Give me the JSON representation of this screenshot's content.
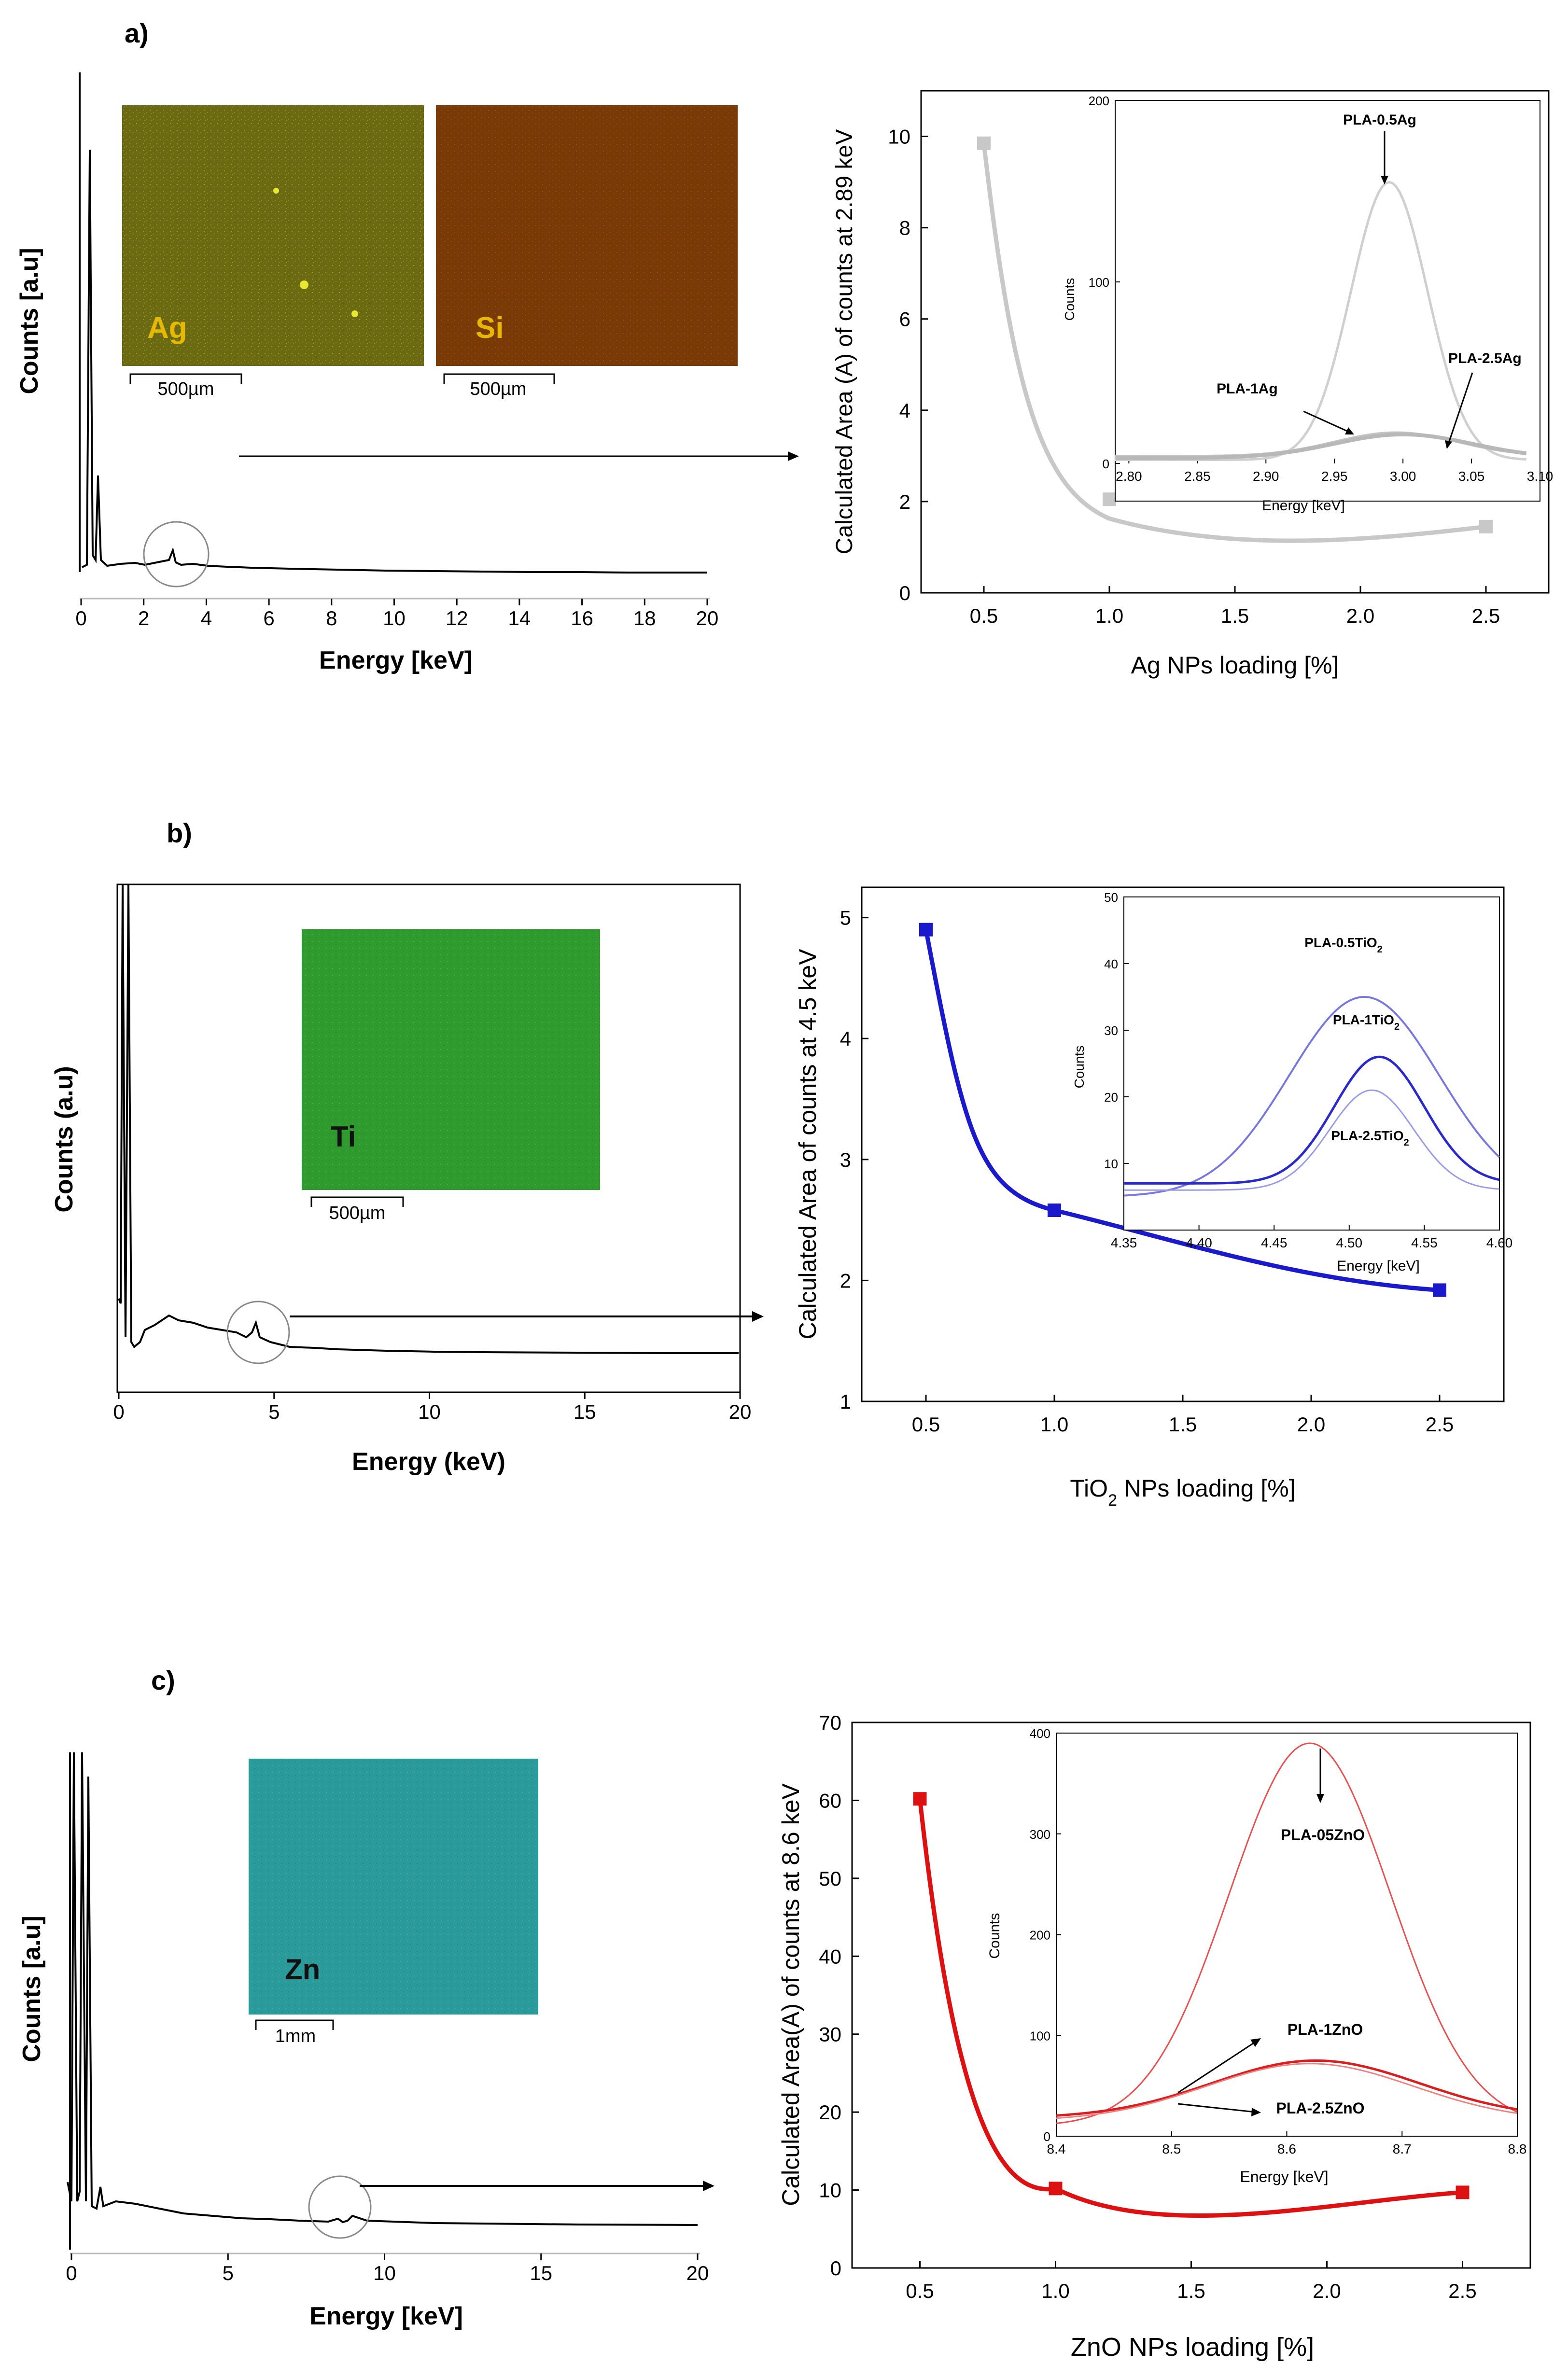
{
  "panels": [
    {
      "label": "a)",
      "eds": {
        "ylabel": "Counts [a.u]",
        "xlabel": "Energy [keV]",
        "xticks": [
          "0",
          "2",
          "4",
          "6",
          "8",
          "10",
          "12",
          "14",
          "16",
          "18",
          "20"
        ],
        "xlim": [
          0,
          20
        ],
        "maps": [
          {
            "element": "Ag",
            "scalebar": "500µm",
            "color": "#6b6a12",
            "label_color": "#e6b800"
          },
          {
            "element": "Si",
            "scalebar": "500µm",
            "color": "#7a3a08",
            "label_color": "#e6b800"
          }
        ]
      },
      "chart": {
        "ylabel": "Calculated Area (A) of counts at 2.89 keV",
        "xlabel": "Ag NPs loading [%]",
        "xticks": [
          "0.5",
          "1.0",
          "1.5",
          "2.0",
          "2.5"
        ],
        "yticks": [
          "0",
          "2",
          "4",
          "6",
          "8",
          "10"
        ],
        "color": "#c8c8c8",
        "inset": {
          "ylabel": "Counts",
          "xlabel": "Energy [keV]",
          "xticks": [
            "2.80",
            "2.85",
            "2.90",
            "2.95",
            "3.00",
            "3.05",
            "3.10"
          ],
          "yticks": [
            "200",
            "100",
            "0"
          ],
          "curve_labels": [
            "PLA-0.5Ag",
            "PLA-1Ag",
            "PLA-2.5Ag"
          ]
        }
      }
    },
    {
      "label": "b)",
      "eds": {
        "ylabel": "Counts (a.u)",
        "xlabel": "Energy (keV)",
        "xticks": [
          "0",
          "5",
          "10",
          "15",
          "20"
        ],
        "xlim": [
          0,
          20
        ],
        "maps": [
          {
            "element": "Ti",
            "scalebar": "500µm",
            "color": "#2f9b2f",
            "label_color": "#111111"
          }
        ]
      },
      "chart": {
        "ylabel": "Calculated Area of counts at 4.5 keV",
        "xlabel_main": "TiO",
        "xlabel_sub": "2",
        "xlabel_rest": " NPs loading [%]",
        "xticks": [
          "0.5",
          "1.0",
          "1.5",
          "2.0",
          "2.5"
        ],
        "yticks": [
          "1",
          "2",
          "3",
          "4",
          "5"
        ],
        "color": "#1a1acc",
        "inset": {
          "ylabel": "Counts",
          "xlabel": "Energy [keV]",
          "xticks": [
            "4.35",
            "4.40",
            "4.45",
            "4.50",
            "4.55",
            "4.60"
          ],
          "yticks": [
            "50",
            "40",
            "30",
            "20",
            "10"
          ],
          "curve_labels": [
            "PLA-0.5TiO",
            "PLA-1TiO",
            "PLA-2.5TiO"
          ],
          "curve_label_sub": "2"
        }
      }
    },
    {
      "label": "c)",
      "eds": {
        "ylabel": "Counts [a.u]",
        "xlabel": "Energy [keV]",
        "xticks": [
          "0",
          "5",
          "10",
          "15",
          "20"
        ],
        "xlim": [
          0,
          20
        ],
        "maps": [
          {
            "element": "Zn",
            "scalebar": "1mm",
            "color": "#2a9a9a",
            "label_color": "#111111"
          }
        ]
      },
      "chart": {
        "ylabel": "Calculated Area(A) of counts at 8.6 keV",
        "xlabel": "ZnO NPs loading [%]",
        "xticks": [
          "0.5",
          "1.0",
          "1.5",
          "2.0",
          "2.5"
        ],
        "yticks": [
          "0",
          "10",
          "20",
          "30",
          "40",
          "50",
          "60",
          "70"
        ],
        "color": "#dd1111",
        "inset": {
          "ylabel": "Counts",
          "xlabel": "Energy [keV]",
          "xticks": [
            "8.4",
            "8.5",
            "8.6",
            "8.7",
            "8.8"
          ],
          "yticks": [
            "400",
            "300",
            "200",
            "100",
            "0"
          ],
          "curve_labels": [
            "PLA-05ZnO",
            "PLA-1ZnO",
            "PLA-2.5ZnO"
          ]
        }
      }
    }
  ],
  "chart_data": [
    {
      "type": "line",
      "xlabel": "Ag NPs loading [%]",
      "ylabel": "Calculated Area (A) of counts at 2.89 keV",
      "x": [
        0.5,
        1.0,
        2.5
      ],
      "y": [
        9.85,
        2.05,
        1.45
      ],
      "xlim": [
        0.25,
        2.75
      ],
      "ylim": [
        0,
        11
      ],
      "inset": {
        "type": "line",
        "xlabel": "Energy [keV]",
        "ylabel": "Counts",
        "xlim": [
          2.79,
          3.1
        ],
        "ylim": [
          0,
          200
        ],
        "series": [
          {
            "name": "PLA-0.5Ag",
            "center": 2.99,
            "peak": 155,
            "baseline": 2
          },
          {
            "name": "PLA-1Ag",
            "center": 2.995,
            "peak": 17,
            "baseline": 4
          },
          {
            "name": "PLA-2.5Ag",
            "center": 3.0,
            "peak": 16,
            "baseline": 3
          }
        ]
      }
    },
    {
      "type": "line",
      "xlabel": "TiO2 NPs loading [%]",
      "ylabel": "Calculated Area of counts at 4.5 keV",
      "x": [
        0.5,
        1.0,
        2.5
      ],
      "y": [
        4.9,
        2.58,
        1.92
      ],
      "xlim": [
        0.25,
        2.75
      ],
      "ylim": [
        1,
        5.25
      ],
      "inset": {
        "type": "line",
        "xlabel": "Energy [keV]",
        "ylabel": "Counts",
        "xlim": [
          4.35,
          4.6
        ],
        "ylim": [
          0,
          50
        ],
        "series": [
          {
            "name": "PLA-0.5TiO2",
            "center": 4.51,
            "peak": 35,
            "baseline": 5
          },
          {
            "name": "PLA-1TiO2",
            "center": 4.52,
            "peak": 26,
            "baseline": 7
          },
          {
            "name": "PLA-2.5TiO2",
            "center": 4.515,
            "peak": 21,
            "baseline": 6
          }
        ]
      }
    },
    {
      "type": "line",
      "xlabel": "ZnO NPs loading [%]",
      "ylabel": "Calculated Area(A) of counts at 8.6 keV",
      "x": [
        0.5,
        1.0,
        2.5
      ],
      "y": [
        60.2,
        10.2,
        9.7
      ],
      "xlim": [
        0.25,
        2.75
      ],
      "ylim": [
        0,
        70
      ],
      "inset": {
        "type": "line",
        "xlabel": "Energy [keV]",
        "ylabel": "Counts",
        "xlim": [
          8.4,
          8.8
        ],
        "ylim": [
          0,
          400
        ],
        "series": [
          {
            "name": "PLA-05ZnO",
            "center": 8.62,
            "peak": 390,
            "baseline": 10
          },
          {
            "name": "PLA-1ZnO",
            "center": 8.625,
            "peak": 75,
            "baseline": 18
          },
          {
            "name": "PLA-2.5ZnO",
            "center": 8.62,
            "peak": 72,
            "baseline": 15
          }
        ]
      }
    }
  ]
}
